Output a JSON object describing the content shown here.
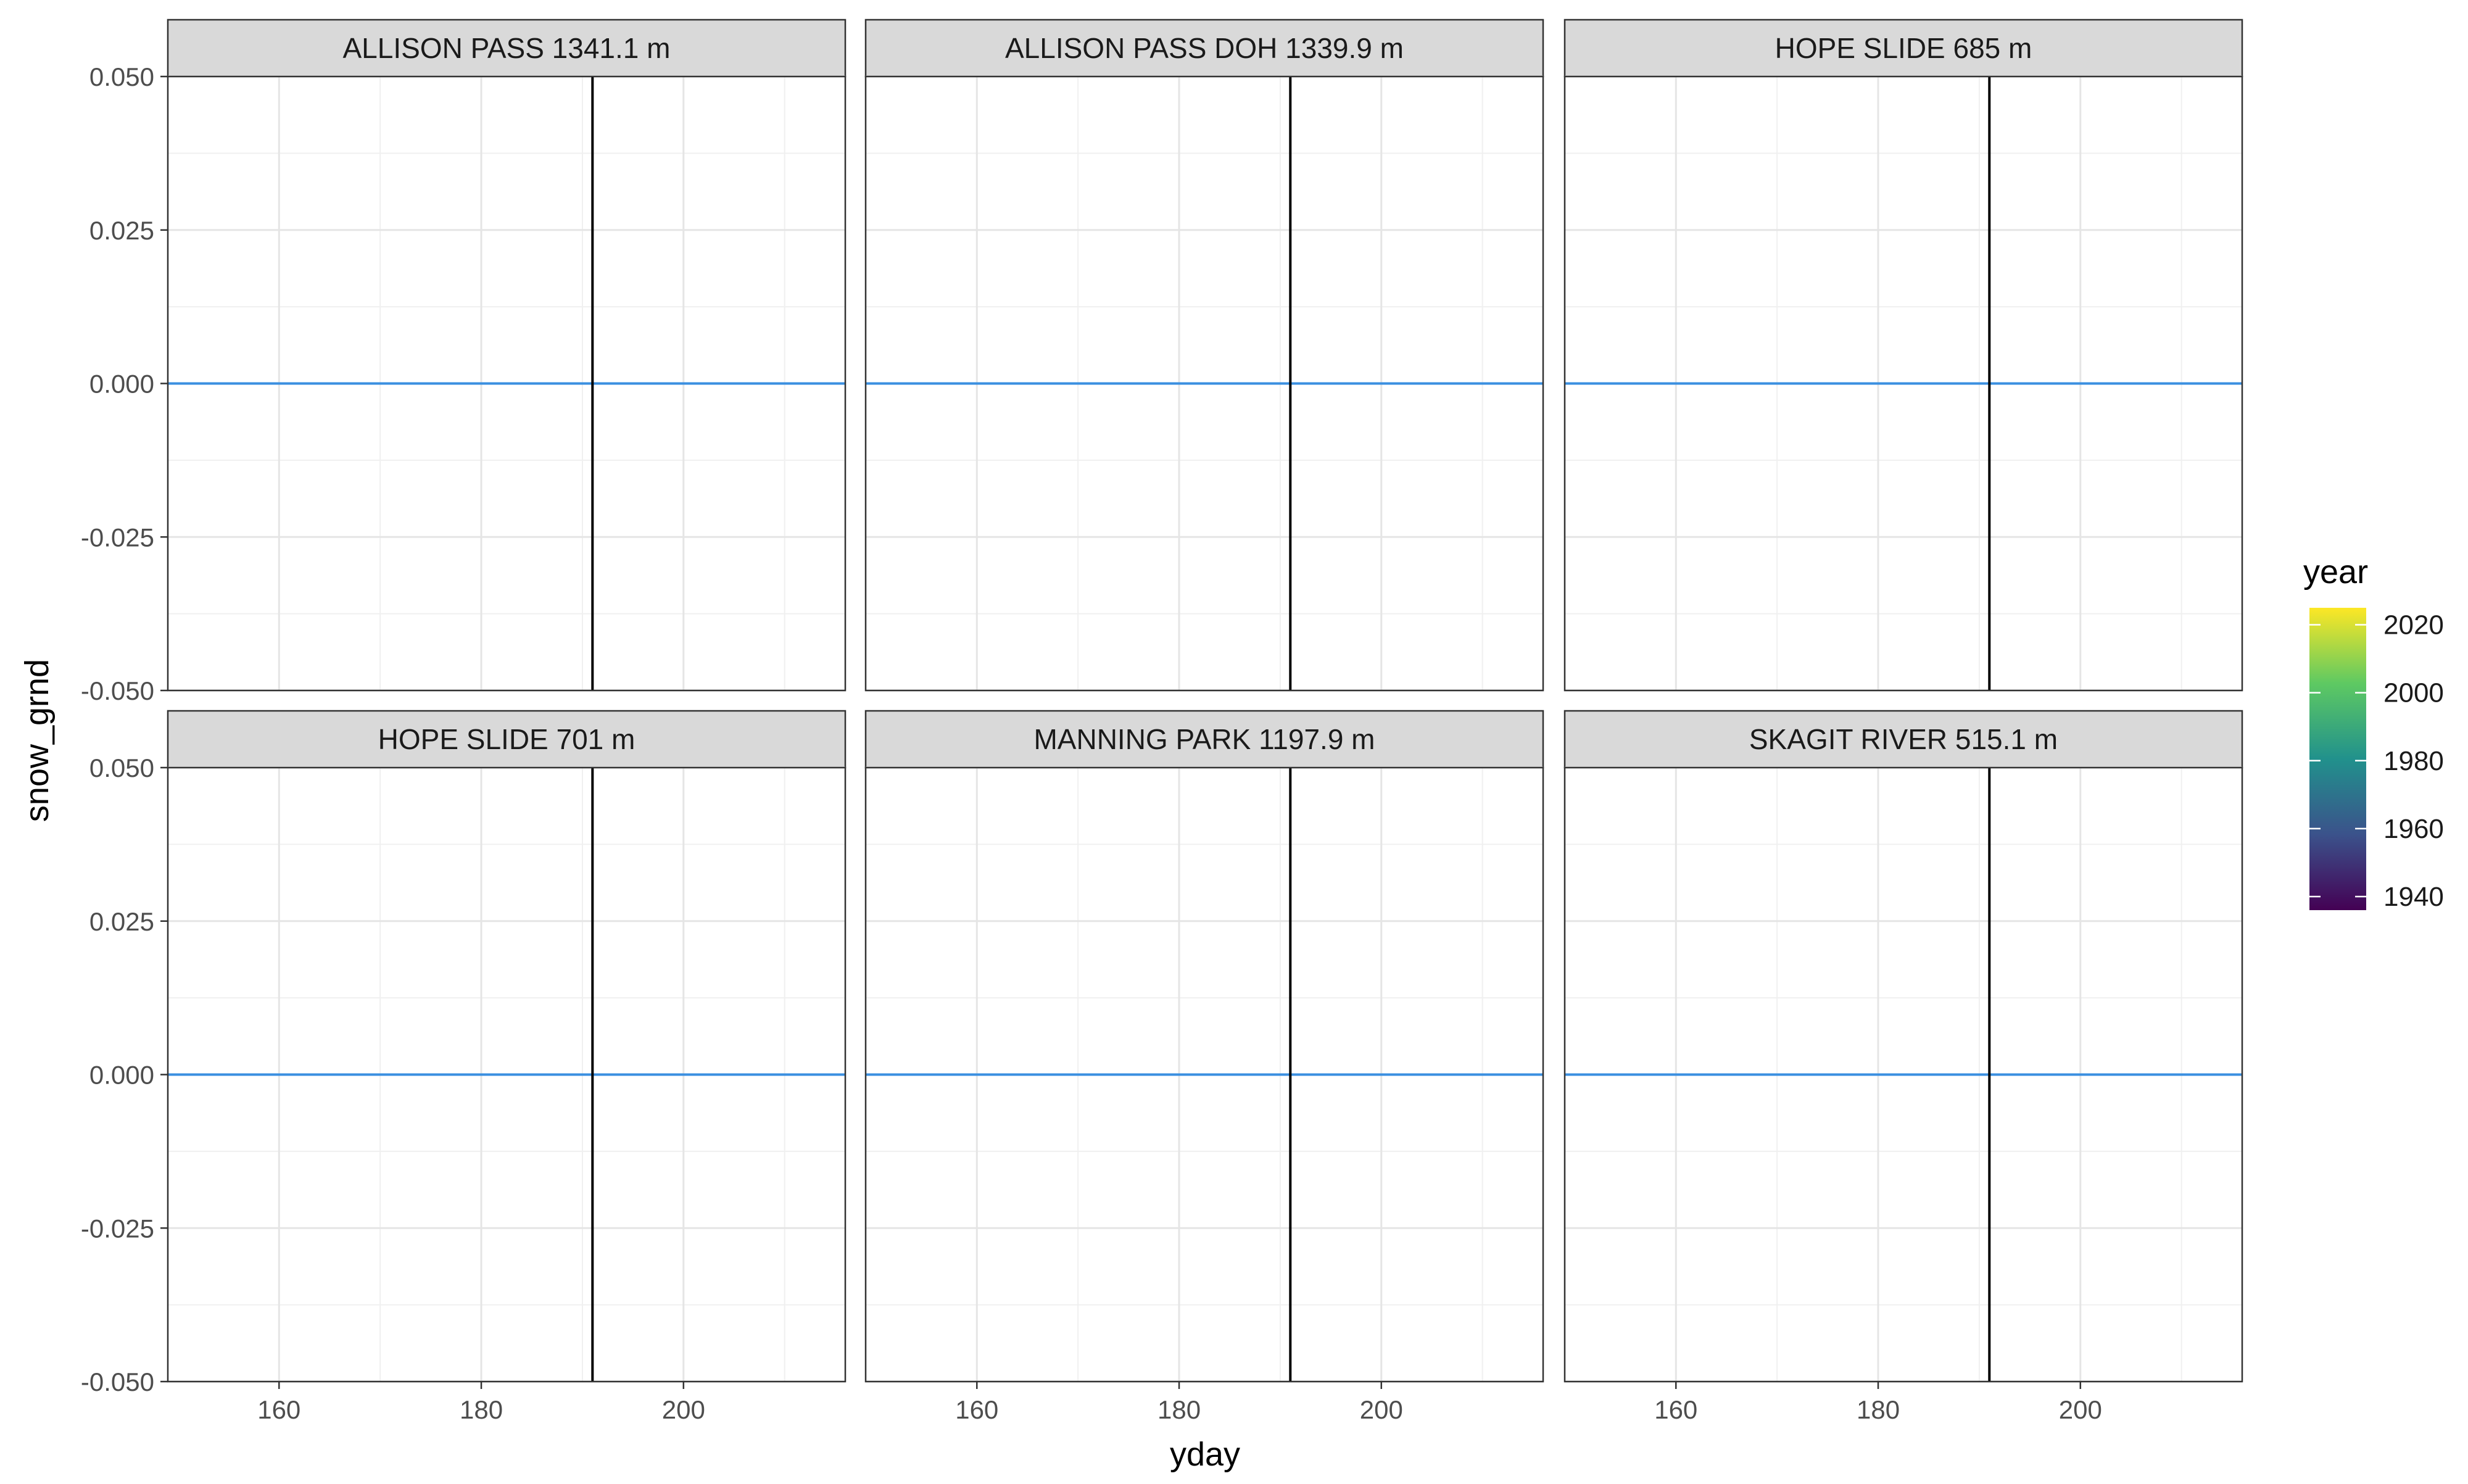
{
  "chart_data": {
    "type": "line",
    "layout": "facet_wrap",
    "ylabel": "snow_grnd",
    "xlabel": "yday",
    "xlim": [
      149,
      216
    ],
    "ylim": [
      -0.05,
      0.05
    ],
    "x_ticks": [
      160,
      180,
      200
    ],
    "y_ticks": [
      "0.050",
      "0.025",
      "0.000",
      "-0.025",
      "-0.050"
    ],
    "y_tick_values": [
      0.05,
      0.025,
      0,
      -0.025,
      -0.05
    ],
    "reference_line": {
      "x": 191,
      "color": "#000000"
    },
    "line_color": "#3a8fe0",
    "grid": true,
    "legend": {
      "title": "year",
      "placement": "right",
      "type": "colorbar",
      "labels": [
        "2020",
        "2000",
        "1980",
        "1960",
        "1940"
      ],
      "label_values": [
        2020,
        2000,
        1980,
        1960,
        1940
      ],
      "range": [
        1936,
        2025
      ],
      "colors": [
        "#440154",
        "#3b528b",
        "#21918c",
        "#5ec962",
        "#fde725"
      ]
    },
    "panels": [
      {
        "title": "ALLISON PASS 1341.1 m",
        "series": [
          {
            "x": [
              149,
              216
            ],
            "y": [
              0,
              0
            ]
          }
        ]
      },
      {
        "title": "ALLISON PASS DOH 1339.9 m",
        "series": [
          {
            "x": [
              149,
              216
            ],
            "y": [
              0,
              0
            ]
          }
        ]
      },
      {
        "title": "HOPE SLIDE 685 m",
        "series": [
          {
            "x": [
              149,
              216
            ],
            "y": [
              0,
              0
            ]
          }
        ]
      },
      {
        "title": "HOPE SLIDE 701 m",
        "series": [
          {
            "x": [
              149,
              216
            ],
            "y": [
              0,
              0
            ]
          }
        ]
      },
      {
        "title": "MANNING PARK 1197.9 m",
        "series": [
          {
            "x": [
              149,
              216
            ],
            "y": [
              0,
              0
            ]
          }
        ]
      },
      {
        "title": "SKAGIT RIVER 515.1 m",
        "series": [
          {
            "x": [
              149,
              216
            ],
            "y": [
              0,
              0
            ]
          }
        ]
      }
    ]
  }
}
